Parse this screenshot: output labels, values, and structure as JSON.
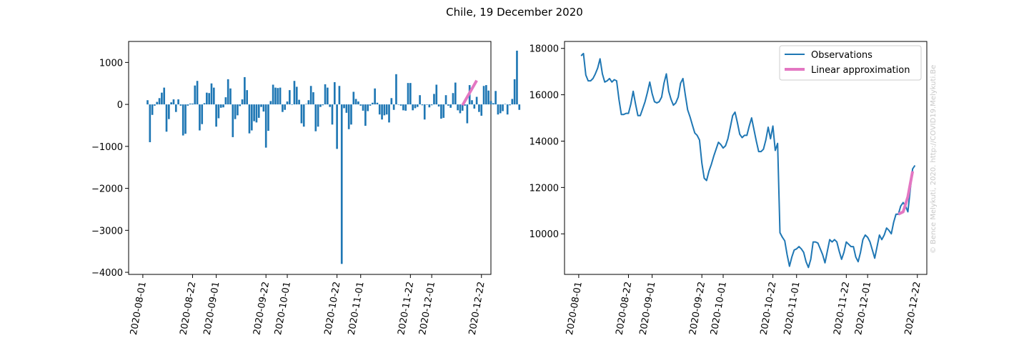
{
  "figure_title": "Chile, 19 December 2020",
  "watermark": "© Bence Melykuti, 2020. http://COVID19.Melykuti.Be",
  "colors": {
    "bars": "#1f77b4",
    "line": "#1f77b4",
    "fit": "#e377c2"
  },
  "chart_data": [
    {
      "type": "bar",
      "x_axis": "date",
      "x_ticks": [
        "2020-08-01",
        "2020-08-22",
        "2020-09-01",
        "2020-09-22",
        "2020-10-01",
        "2020-10-22",
        "2020-11-01",
        "2020-11-22",
        "2020-12-01",
        "2020-12-22"
      ],
      "y_ticks": [
        1000,
        0,
        -1000,
        -2000,
        -3000,
        -4000
      ],
      "y_tick_labels": [
        "1000",
        "0",
        "−1000",
        "−2000",
        "−3000",
        "−4000"
      ],
      "ylim": [
        -4050,
        1500
      ],
      "xlim": [
        "2020-07-26",
        "2020-12-26"
      ],
      "grid": false,
      "start_date": "2020-08-03",
      "values": [
        100,
        -900,
        -250,
        -30,
        60,
        150,
        280,
        400,
        -650,
        -350,
        50,
        120,
        -180,
        120,
        -30,
        -740,
        -700,
        -30,
        20,
        20,
        450,
        560,
        -620,
        -470,
        30,
        280,
        270,
        500,
        400,
        -530,
        -330,
        -80,
        -70,
        170,
        600,
        380,
        -780,
        -350,
        -260,
        -40,
        120,
        650,
        340,
        -690,
        -620,
        -400,
        -430,
        -320,
        -60,
        -170,
        -1030,
        -630,
        80,
        470,
        400,
        390,
        400,
        -180,
        -130,
        70,
        340,
        -10,
        560,
        420,
        110,
        -450,
        -530,
        10,
        100,
        440,
        290,
        -640,
        -530,
        -60,
        -20,
        480,
        400,
        -60,
        -480,
        530,
        -1060,
        440,
        -3800,
        -90,
        -200,
        -590,
        -480,
        300,
        130,
        70,
        -30,
        -150,
        -510,
        -160,
        -30,
        40,
        380,
        40,
        -240,
        -360,
        -260,
        -240,
        -430,
        150,
        -130,
        720,
        -10,
        -30,
        -140,
        -150,
        510,
        510,
        -140,
        -90,
        -60,
        220,
        -20,
        -360,
        -10,
        -70,
        -20,
        250,
        470,
        -50,
        -340,
        -320,
        220,
        -30,
        -80,
        270,
        520,
        -140,
        -210,
        -150,
        -30,
        -450,
        460,
        100,
        -100,
        180,
        -180,
        -270,
        440,
        460,
        330,
        80,
        30,
        320,
        -240,
        -210,
        -160,
        10,
        -240,
        -20,
        130,
        600,
        1280,
        -130
      ],
      "fit": {
        "name": "Linear approximation",
        "start": [
          "2020-12-14",
          -20
        ],
        "end": [
          "2020-12-20",
          570
        ]
      }
    },
    {
      "type": "line",
      "x_axis": "date",
      "x_ticks": [
        "2020-08-01",
        "2020-08-22",
        "2020-09-01",
        "2020-09-22",
        "2020-10-01",
        "2020-10-22",
        "2020-11-01",
        "2020-11-22",
        "2020-12-01",
        "2020-12-22"
      ],
      "y_ticks": [
        18000,
        16000,
        14000,
        12000,
        10000
      ],
      "ylim": [
        8250,
        18300
      ],
      "xlim": [
        "2020-07-26",
        "2020-12-26"
      ],
      "grid": false,
      "legend": "upper right",
      "series": [
        {
          "name": "Observations",
          "start_date": "2020-08-02",
          "values": [
            17680,
            17780,
            16850,
            16600,
            16600,
            16700,
            16900,
            17150,
            17550,
            16900,
            16550,
            16600,
            16700,
            16550,
            16650,
            16600,
            15800,
            15150,
            15150,
            15200,
            15200,
            15600,
            16150,
            15600,
            15100,
            15100,
            15400,
            15700,
            16100,
            16550,
            16050,
            15700,
            15650,
            15700,
            15900,
            16500,
            16900,
            16150,
            15800,
            15550,
            15650,
            15900,
            16500,
            16700,
            16000,
            15350,
            15050,
            14700,
            14350,
            14250,
            14050,
            13050,
            12400,
            12300,
            12700,
            13000,
            13350,
            13650,
            13950,
            13850,
            13700,
            13800,
            14100,
            14600,
            15100,
            15250,
            14800,
            14300,
            14150,
            14250,
            14250,
            14650,
            15000,
            14500,
            14000,
            13550,
            13550,
            13650,
            14050,
            14600,
            14100,
            14650,
            13600,
            13900,
            10050,
            9850,
            9700,
            9100,
            8600,
            9000,
            9300,
            9350,
            9450,
            9350,
            9200,
            8800,
            8550,
            8900,
            9650,
            9650,
            9600,
            9350,
            9100,
            8750,
            9250,
            9750,
            9650,
            9750,
            9650,
            9250,
            8900,
            9200,
            9650,
            9550,
            9450,
            9450,
            9000,
            8800,
            9200,
            9750,
            9950,
            9850,
            9650,
            9300,
            8950,
            9450,
            9950,
            9750,
            9950,
            10250,
            10150,
            10000,
            10500,
            10850,
            10850,
            11200,
            11350,
            11200,
            10950,
            11900,
            12800,
            12950
          ]
        }
      ],
      "fit": {
        "name": "Linear approximation",
        "points": [
          [
            "2020-12-14",
            10850
          ],
          [
            "2020-12-16",
            10950
          ],
          [
            "2020-12-18",
            11600
          ],
          [
            "2020-12-20",
            12700
          ]
        ]
      }
    }
  ]
}
